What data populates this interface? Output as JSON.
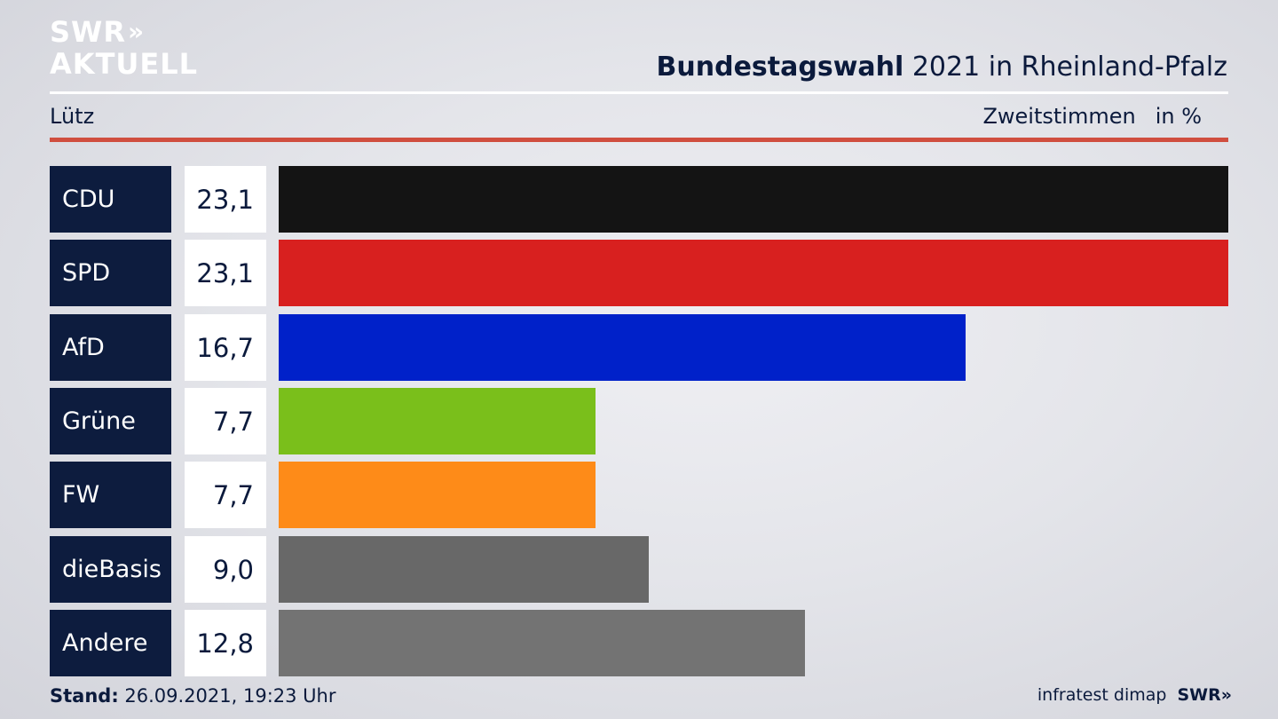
{
  "logo": {
    "line1": "SWR",
    "chevrons": "»",
    "line2": "AKTUELL"
  },
  "header": {
    "title_bold": "Bundestagswahl",
    "title_rest": " 2021 in Rheinland-Pfalz"
  },
  "subheader": {
    "region": "Lütz",
    "measure": "Zweitstimmen",
    "unit": "in %"
  },
  "footer": {
    "stand_label": "Stand:",
    "stand_value": " 26.09.2021, 19:23 Uhr",
    "source": "infratest dimap",
    "swr_logo": "SWR",
    "swr_chevrons": "»"
  },
  "colors": {
    "navy": "#0d1c3e",
    "accent_red_rule": "#d04e3f"
  },
  "chart_data": {
    "type": "bar",
    "orientation": "horizontal",
    "categories": [
      "CDU",
      "SPD",
      "AfD",
      "Grüne",
      "FW",
      "dieBasis",
      "Andere"
    ],
    "values": [
      23.1,
      23.1,
      16.7,
      7.7,
      7.7,
      9.0,
      12.8
    ],
    "value_labels": [
      "23,1",
      "23,1",
      "16,7",
      "7,7",
      "7,7",
      "9,0",
      "12,8"
    ],
    "colors": [
      "#141414",
      "#d8201f",
      "#0021c9",
      "#7abf1b",
      "#fe8b18",
      "#686868",
      "#737373"
    ],
    "xlim": [
      0,
      23.1
    ],
    "grid": false
  }
}
